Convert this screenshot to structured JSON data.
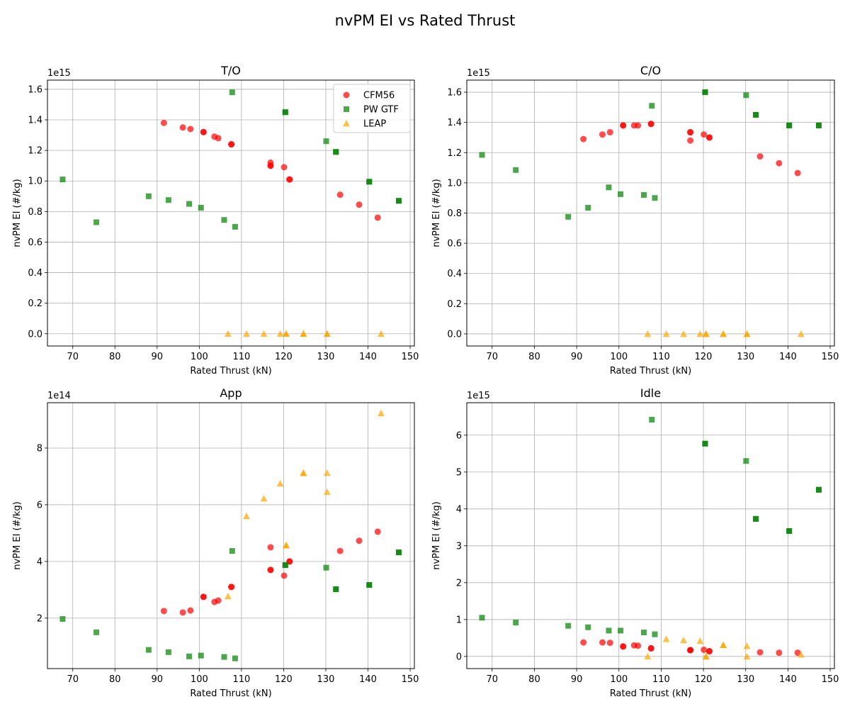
{
  "figure": {
    "title": "nvPM EI vs Rated Thrust",
    "series_style": [
      {
        "name": "CFM56",
        "marker": "circle",
        "color": "#ff0000"
      },
      {
        "name": "PW GTF",
        "marker": "square",
        "color": "#008000"
      },
      {
        "name": "LEAP",
        "marker": "triangle",
        "color": "#ffa500"
      }
    ],
    "legend_location": "top-right of T/O panel"
  },
  "chart_data": [
    {
      "type": "scatter",
      "title": "T/O",
      "xlabel": "Rated Thrust (kN)",
      "ylabel": "nvPM EI (#/kg)",
      "y_offset": "1e15",
      "scale": 1000000000000000.0,
      "xlim": [
        64,
        151
      ],
      "ylim": [
        -0.08,
        1.66
      ],
      "xticks": [
        70,
        80,
        90,
        100,
        110,
        120,
        130,
        140,
        150
      ],
      "yticks": [
        0.0,
        0.2,
        0.4,
        0.6,
        0.8,
        1.0,
        1.2,
        1.4,
        1.6
      ],
      "ytick_labels": [
        "0.0",
        "0.2",
        "0.4",
        "0.6",
        "0.8",
        "1.0",
        "1.2",
        "1.4",
        "1.6"
      ],
      "grid": true,
      "legend": true,
      "series": [
        {
          "name": "CFM56",
          "x": [
            91.6,
            96.1,
            97.9,
            101.0,
            101.0,
            103.6,
            104.5,
            107.6,
            107.6,
            116.9,
            116.9,
            116.9,
            120.1,
            121.4,
            121.4,
            133.4,
            137.9,
            142.3
          ],
          "y": [
            1.38,
            1.35,
            1.34,
            1.32,
            1.32,
            1.29,
            1.28,
            1.24,
            1.24,
            1.12,
            1.1,
            1.1,
            1.09,
            1.01,
            1.01,
            0.91,
            0.845,
            0.76
          ]
        },
        {
          "name": "PW GTF",
          "x": [
            67.6,
            75.6,
            88.0,
            92.7,
            97.6,
            100.4,
            105.9,
            107.8,
            108.5,
            120.4,
            120.4,
            130.1,
            132.4,
            132.4,
            140.3,
            140.3,
            147.3,
            147.3
          ],
          "y": [
            1.01,
            0.73,
            0.9,
            0.875,
            0.85,
            0.825,
            0.745,
            1.58,
            0.7,
            1.45,
            1.45,
            1.26,
            1.19,
            1.19,
            0.995,
            0.995,
            0.87,
            0.87
          ]
        },
        {
          "name": "LEAP",
          "x": [
            106.8,
            111.2,
            115.3,
            119.2,
            120.6,
            120.6,
            124.7,
            124.7,
            130.3,
            130.3,
            143.1
          ],
          "y": [
            0.0,
            0.0,
            0.0,
            0.0,
            0.0,
            0.0,
            0.0,
            0.0,
            0.0,
            0.0,
            0.0
          ]
        }
      ]
    },
    {
      "type": "scatter",
      "title": "C/O",
      "xlabel": "Rated Thrust (kN)",
      "ylabel": "nvPM EI (#/kg)",
      "y_offset": "1e15",
      "scale": 1000000000000000.0,
      "xlim": [
        64,
        151
      ],
      "ylim": [
        -0.08,
        1.68
      ],
      "xticks": [
        70,
        80,
        90,
        100,
        110,
        120,
        130,
        140,
        150
      ],
      "yticks": [
        0.0,
        0.2,
        0.4,
        0.6,
        0.8,
        1.0,
        1.2,
        1.4,
        1.6
      ],
      "ytick_labels": [
        "0.0",
        "0.2",
        "0.4",
        "0.6",
        "0.8",
        "1.0",
        "1.2",
        "1.4",
        "1.6"
      ],
      "grid": true,
      "legend": false,
      "series": [
        {
          "name": "CFM56",
          "x": [
            91.6,
            96.1,
            97.9,
            101.0,
            101.0,
            103.6,
            104.5,
            107.6,
            107.6,
            116.9,
            116.9,
            116.9,
            120.1,
            121.4,
            121.4,
            133.4,
            137.9,
            142.3
          ],
          "y": [
            1.29,
            1.32,
            1.335,
            1.38,
            1.38,
            1.38,
            1.38,
            1.39,
            1.39,
            1.335,
            1.335,
            1.28,
            1.32,
            1.3,
            1.3,
            1.175,
            1.13,
            1.065
          ]
        },
        {
          "name": "PW GTF",
          "x": [
            67.6,
            75.6,
            88.0,
            92.7,
            97.6,
            100.4,
            105.9,
            107.8,
            108.5,
            120.4,
            120.4,
            130.1,
            132.4,
            132.4,
            140.3,
            140.3,
            147.3,
            147.3
          ],
          "y": [
            1.185,
            1.085,
            0.775,
            0.835,
            0.97,
            0.925,
            0.92,
            1.51,
            0.9,
            1.6,
            1.6,
            1.58,
            1.45,
            1.45,
            1.38,
            1.38,
            1.38,
            1.38
          ]
        },
        {
          "name": "LEAP",
          "x": [
            106.8,
            111.2,
            115.3,
            119.2,
            120.6,
            120.6,
            124.7,
            124.7,
            130.3,
            130.3,
            143.1
          ],
          "y": [
            0.0,
            0.0,
            0.0,
            0.0,
            0.0,
            0.0,
            0.0,
            0.0,
            0.0,
            0.0,
            0.0
          ]
        }
      ]
    },
    {
      "type": "scatter",
      "title": "App",
      "xlabel": "Rated Thrust (kN)",
      "ylabel": "nvPM EI (#/kg)",
      "y_offset": "1e14",
      "scale": 100000000000000.0,
      "xlim": [
        64,
        151
      ],
      "ylim": [
        0.22,
        9.6
      ],
      "xticks": [
        70,
        80,
        90,
        100,
        110,
        120,
        130,
        140,
        150
      ],
      "yticks": [
        2,
        4,
        6,
        8
      ],
      "ytick_labels": [
        "2",
        "4",
        "6",
        "8"
      ],
      "grid": true,
      "legend": false,
      "series": [
        {
          "name": "CFM56",
          "x": [
            91.6,
            96.1,
            97.9,
            101.0,
            101.0,
            103.6,
            104.5,
            107.6,
            107.6,
            116.9,
            116.9,
            116.9,
            120.1,
            121.4,
            121.4,
            133.4,
            137.9,
            142.3
          ],
          "y": [
            2.25,
            2.2,
            2.27,
            2.75,
            2.75,
            2.57,
            2.62,
            3.1,
            3.1,
            4.5,
            3.7,
            3.7,
            3.5,
            4.0,
            4.0,
            4.37,
            4.73,
            5.05
          ]
        },
        {
          "name": "PW GTF",
          "x": [
            67.6,
            75.6,
            88.0,
            92.7,
            97.6,
            100.4,
            105.9,
            107.8,
            108.5,
            120.4,
            120.4,
            130.1,
            132.4,
            132.4,
            140.3,
            140.3,
            147.3,
            147.3
          ],
          "y": [
            1.97,
            1.5,
            0.88,
            0.8,
            0.65,
            0.68,
            0.63,
            4.37,
            0.58,
            3.87,
            3.87,
            3.78,
            3.02,
            3.02,
            3.17,
            3.17,
            4.32,
            4.32
          ]
        },
        {
          "name": "LEAP",
          "x": [
            106.8,
            111.2,
            115.3,
            119.2,
            120.6,
            120.6,
            124.7,
            124.7,
            130.3,
            130.3,
            143.1
          ],
          "y": [
            2.77,
            5.6,
            6.22,
            6.75,
            4.57,
            4.57,
            7.12,
            7.12,
            7.12,
            6.45,
            9.23
          ]
        }
      ]
    },
    {
      "type": "scatter",
      "title": "Idle",
      "xlabel": "Rated Thrust (kN)",
      "ylabel": "nvPM EI (#/kg)",
      "y_offset": "1e15",
      "scale": 1000000000000000.0,
      "xlim": [
        64,
        151
      ],
      "ylim": [
        -0.33,
        6.88
      ],
      "xticks": [
        70,
        80,
        90,
        100,
        110,
        120,
        130,
        140,
        150
      ],
      "yticks": [
        0,
        1,
        2,
        3,
        4,
        5,
        6
      ],
      "ytick_labels": [
        "0",
        "1",
        "2",
        "3",
        "4",
        "5",
        "6"
      ],
      "grid": true,
      "legend": false,
      "series": [
        {
          "name": "CFM56",
          "x": [
            91.6,
            96.1,
            97.9,
            101.0,
            101.0,
            103.6,
            104.5,
            107.6,
            107.6,
            116.9,
            116.9,
            116.9,
            120.1,
            121.4,
            121.4,
            133.4,
            137.9,
            142.3
          ],
          "y": [
            0.38,
            0.38,
            0.37,
            0.27,
            0.27,
            0.3,
            0.29,
            0.22,
            0.22,
            0.17,
            0.17,
            0.17,
            0.18,
            0.14,
            0.14,
            0.11,
            0.1,
            0.1
          ]
        },
        {
          "name": "PW GTF",
          "x": [
            67.6,
            75.6,
            88.0,
            92.7,
            97.6,
            100.4,
            105.9,
            107.8,
            108.5,
            120.4,
            120.4,
            130.1,
            132.4,
            132.4,
            140.3,
            140.3,
            147.3,
            147.3
          ],
          "y": [
            1.05,
            0.92,
            0.83,
            0.79,
            0.7,
            0.7,
            0.65,
            6.42,
            0.6,
            5.77,
            5.77,
            5.3,
            3.73,
            3.73,
            3.4,
            3.4,
            4.52,
            4.52
          ]
        },
        {
          "name": "LEAP",
          "x": [
            106.8,
            111.2,
            115.3,
            119.2,
            120.6,
            120.6,
            124.7,
            124.7,
            130.3,
            130.3,
            143.1
          ],
          "y": [
            0.0,
            0.47,
            0.44,
            0.42,
            0.0,
            0.0,
            0.31,
            0.31,
            0.28,
            0.0,
            0.05
          ]
        }
      ]
    }
  ]
}
